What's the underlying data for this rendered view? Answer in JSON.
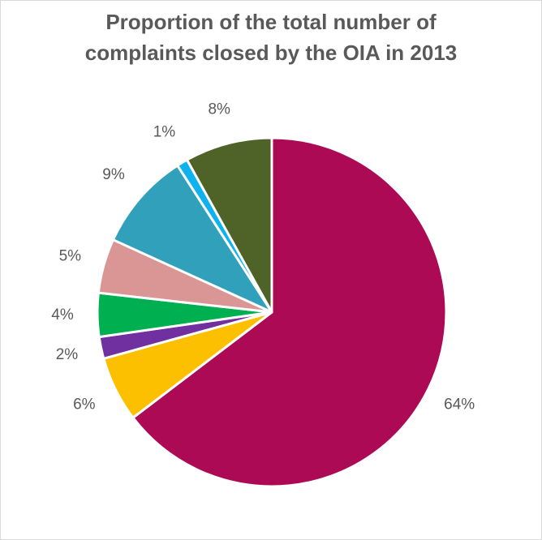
{
  "chart_data": {
    "type": "pie",
    "title": "Proportion of the total number of complaints closed by the OIA in 2013",
    "title_lines": [
      "Proportion of the total number of",
      "complaints closed by the OIA in 2013"
    ],
    "legend": "none",
    "slices": [
      {
        "value": 64,
        "label": "64%",
        "color": "#ad0a55"
      },
      {
        "value": 6,
        "label": "6%",
        "color": "#fdc000"
      },
      {
        "value": 2,
        "label": "2%",
        "color": "#7030a0"
      },
      {
        "value": 4,
        "label": "4%",
        "color": "#00b050"
      },
      {
        "value": 5,
        "label": "5%",
        "color": "#d99694"
      },
      {
        "value": 9,
        "label": "9%",
        "color": "#31a1bb"
      },
      {
        "value": 1,
        "label": "1%",
        "color": "#0db2ee"
      },
      {
        "value": 8,
        "label": "8%",
        "color": "#4f6228"
      }
    ]
  }
}
